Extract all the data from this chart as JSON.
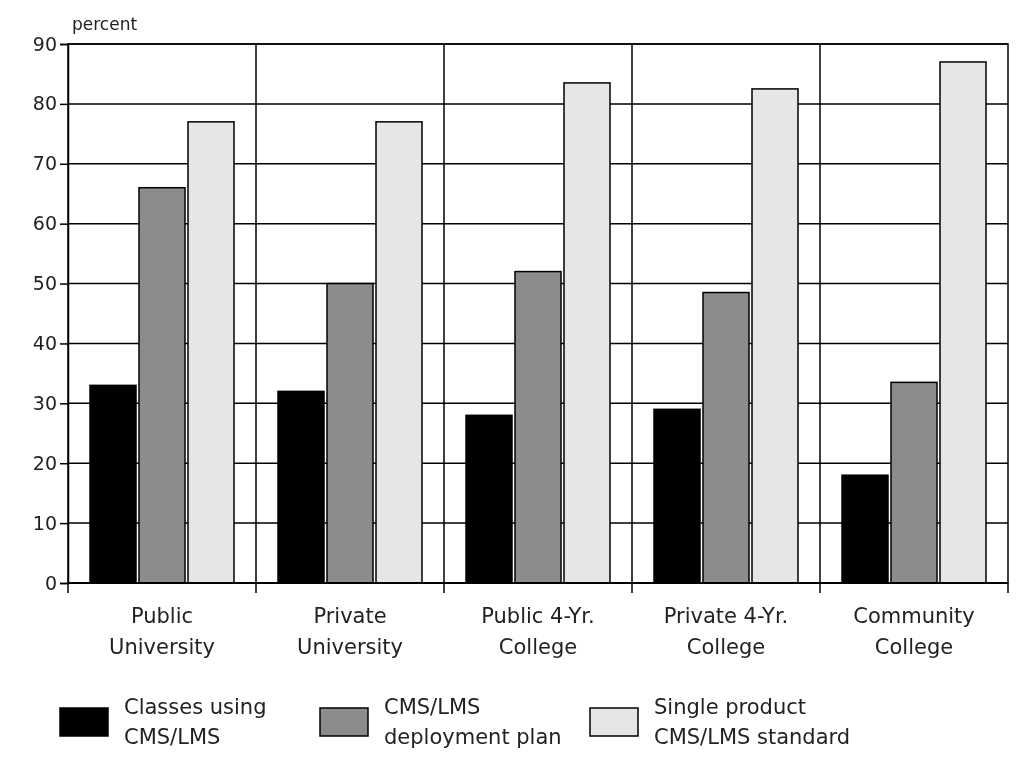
{
  "chart_data": {
    "type": "bar",
    "ylabel": "percent",
    "categories": [
      "Public University",
      "Private University",
      "Public 4-Yr. College",
      "Private 4-Yr. College",
      "Community College"
    ],
    "series": [
      {
        "name": "Classes using CMS/LMS",
        "color": "#000000",
        "values": [
          33,
          32,
          28,
          29,
          18
        ]
      },
      {
        "name": "CMS/LMS deployment plan",
        "color": "#8c8c8c",
        "values": [
          66,
          50,
          52,
          48.5,
          33.5
        ]
      },
      {
        "name": "Single product CMS/LMS standard",
        "color": "#e6e6e6",
        "values": [
          77,
          77,
          83.5,
          82.5,
          87
        ]
      }
    ],
    "ylim": [
      0,
      90
    ],
    "yticks": [
      0,
      10,
      20,
      30,
      40,
      50,
      60,
      70,
      80,
      90
    ],
    "grid": true,
    "legend": "bottom"
  }
}
